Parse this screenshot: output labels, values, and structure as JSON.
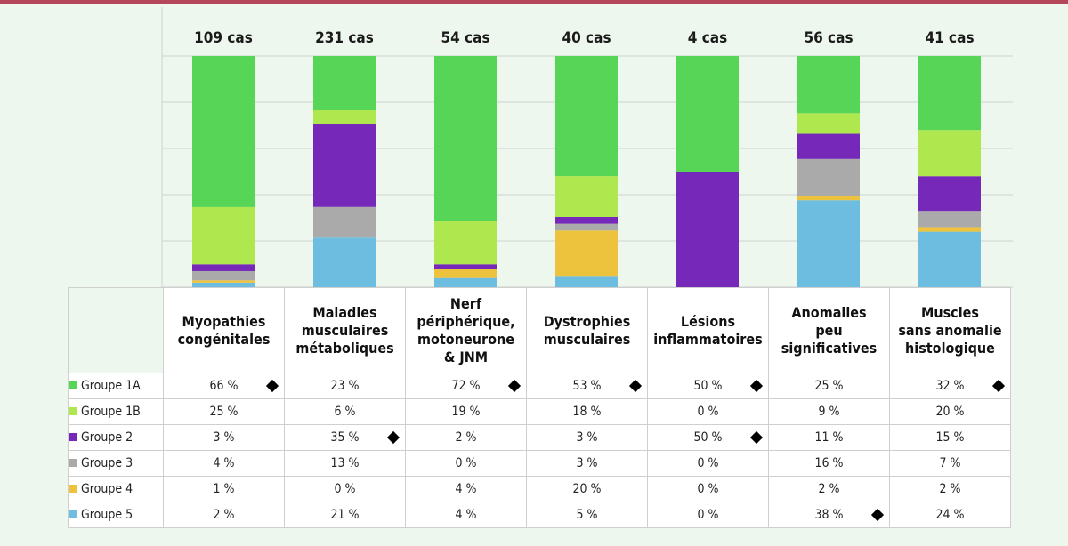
{
  "chart_data": {
    "type": "stacked-bar",
    "categories": [
      "Myopathies\ncongénitales",
      "Maladies\nmusculaires\nmétaboliques",
      "Nerf\npériphérique,\nmotoneurone\n& JNM",
      "Dystrophies\nmusculaires",
      "Lésions\ninflammatoires",
      "Anomalies\npeu\nsignificatives",
      "Muscles\nsans anomalie\nhistologique"
    ],
    "counts": [
      "109 cas",
      "231 cas",
      "54 cas",
      "40 cas",
      "4 cas",
      "56 cas",
      "41 cas"
    ],
    "series": [
      {
        "name": "Groupe 1A",
        "color": "#57d557",
        "values": [
          66,
          23,
          72,
          53,
          50,
          25,
          32
        ],
        "labels": [
          "66 %",
          "23 %",
          "72 %",
          "53 %",
          "50 %",
          "25 %",
          "32 %"
        ]
      },
      {
        "name": "Groupe 1B",
        "color": "#aee74e",
        "values": [
          25,
          6,
          19,
          18,
          0,
          9,
          20
        ],
        "labels": [
          "25 %",
          "6 %",
          "19 %",
          "18 %",
          "0 %",
          "9 %",
          "20 %"
        ]
      },
      {
        "name": "Groupe 2",
        "color": "#7629b8",
        "values": [
          3,
          35,
          2,
          3,
          50,
          11,
          15
        ],
        "labels": [
          "3 %",
          "35 %",
          "2 %",
          "3 %",
          "50 %",
          "11 %",
          "15 %"
        ]
      },
      {
        "name": "Groupe 3",
        "color": "#aaaaaa",
        "values": [
          4,
          13,
          0,
          3,
          0,
          16,
          7
        ],
        "labels": [
          "4 %",
          "13 %",
          "0 %",
          "3 %",
          "0 %",
          "16 %",
          "7 %"
        ]
      },
      {
        "name": "Groupe 4",
        "color": "#edc23c",
        "values": [
          1,
          0,
          4,
          20,
          0,
          2,
          2
        ],
        "labels": [
          "1 %",
          "0 %",
          "4 %",
          "20 %",
          "0 %",
          "2 %",
          "2 %"
        ]
      },
      {
        "name": "Groupe 5",
        "color": "#6cbde0",
        "values": [
          2,
          21,
          4,
          5,
          0,
          38,
          24
        ],
        "labels": [
          "2 %",
          "21 %",
          "4 %",
          "5 %",
          "0 %",
          "38 %",
          "24 %"
        ]
      }
    ],
    "markers": [
      {
        "series": 0,
        "category": 0
      },
      {
        "series": 0,
        "category": 2
      },
      {
        "series": 0,
        "category": 3
      },
      {
        "series": 0,
        "category": 4
      },
      {
        "series": 0,
        "category": 6
      },
      {
        "series": 2,
        "category": 1
      },
      {
        "series": 2,
        "category": 4
      },
      {
        "series": 5,
        "category": 5
      }
    ],
    "ylim": [
      0,
      100
    ],
    "grid": true,
    "title": "",
    "xlabel": "",
    "ylabel": ""
  }
}
